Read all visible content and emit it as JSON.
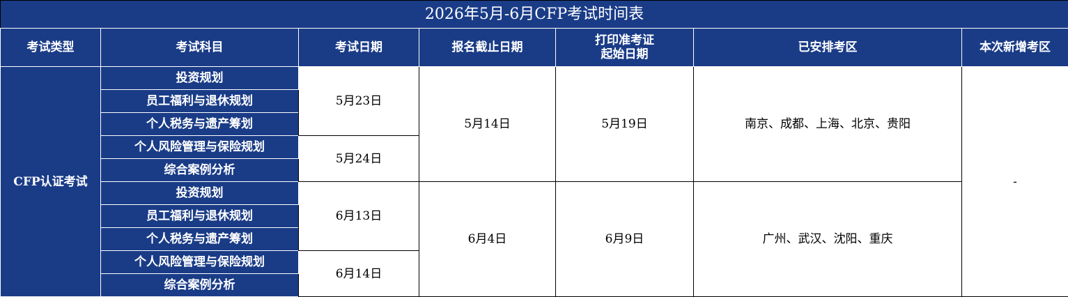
{
  "title": "2026年5月-6月CFP考试时间表",
  "colors": {
    "header_bg": "#1a3c87",
    "header_text": "#ffffff"
  },
  "headers": [
    "考试类型",
    "考试科目",
    "考试日期",
    "报名截止日期",
    "打印准考证\n起始日期",
    "已安排考区",
    "本次新增考区"
  ],
  "exam_type": "CFP认证考试",
  "new_regions": "-",
  "sessions": [
    {
      "subjects": [
        "投资规划",
        "员工福利与退休规划",
        "个人税务与遗产筹划",
        "个人风险管理与保险规划",
        "综合案例分析"
      ],
      "exam_dates": [
        "5月23日",
        "5月24日"
      ],
      "deadline": "5月14日",
      "print_start": "5月19日",
      "regions": "南京、成都、上海、北京、贵阳"
    },
    {
      "subjects": [
        "投资规划",
        "员工福利与退休规划",
        "个人税务与遗产筹划",
        "个人风险管理与保险规划",
        "综合案例分析"
      ],
      "exam_dates": [
        "6月13日",
        "6月14日"
      ],
      "deadline": "6月4日",
      "print_start": "6月9日",
      "regions": "广州、武汉、沈阳、重庆"
    }
  ]
}
